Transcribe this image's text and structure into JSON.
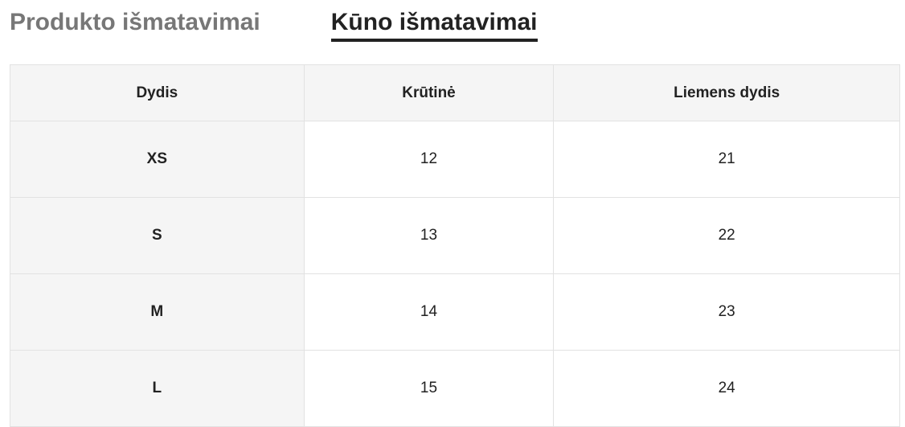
{
  "tabs": [
    {
      "label": "Produkto išmatavimai",
      "active": false
    },
    {
      "label": "Kūno išmatavimai",
      "active": true
    }
  ],
  "table": {
    "headers": [
      "Dydis",
      "Krūtinė",
      "Liemens dydis"
    ],
    "rows": [
      [
        "XS",
        "12",
        "21"
      ],
      [
        "S",
        "13",
        "22"
      ],
      [
        "M",
        "14",
        "23"
      ],
      [
        "L",
        "15",
        "24"
      ]
    ]
  }
}
